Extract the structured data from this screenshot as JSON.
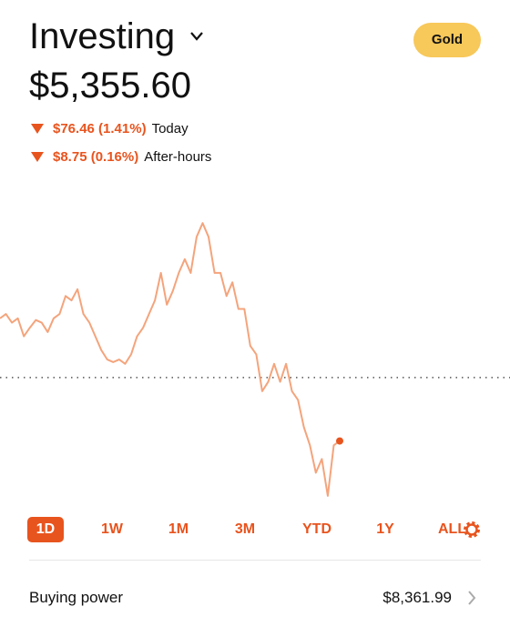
{
  "header": {
    "title": "Investing",
    "badge": "Gold",
    "value": "$5,355.60"
  },
  "changes": [
    {
      "amount": "$76.46 (1.41%)",
      "label": "Today"
    },
    {
      "amount": "$8.75 (0.16%)",
      "label": "After-hours"
    }
  ],
  "chart_data": {
    "type": "line",
    "color": "#f4a47c",
    "dot_color": "#e8541e",
    "values": [
      5501,
      5506,
      5496,
      5501,
      5480,
      5490,
      5499,
      5496,
      5485,
      5501,
      5506,
      5527,
      5522,
      5535,
      5506,
      5496,
      5480,
      5464,
      5453,
      5450,
      5453,
      5448,
      5459,
      5480,
      5490,
      5506,
      5522,
      5554,
      5517,
      5533,
      5554,
      5570,
      5554,
      5596,
      5612,
      5596,
      5554,
      5554,
      5527,
      5543,
      5512,
      5512,
      5469,
      5459,
      5416,
      5427,
      5448,
      5427,
      5448,
      5416,
      5406,
      5374,
      5353,
      5321,
      5337,
      5294,
      5353,
      5358
    ],
    "ylim": [
      5278,
      5660
    ],
    "baseline": 5432.06
  },
  "ranges": [
    "1D",
    "1W",
    "1M",
    "3M",
    "YTD",
    "1Y",
    "ALL"
  ],
  "buying_power": {
    "label": "Buying power",
    "value": "$8,361.99"
  }
}
